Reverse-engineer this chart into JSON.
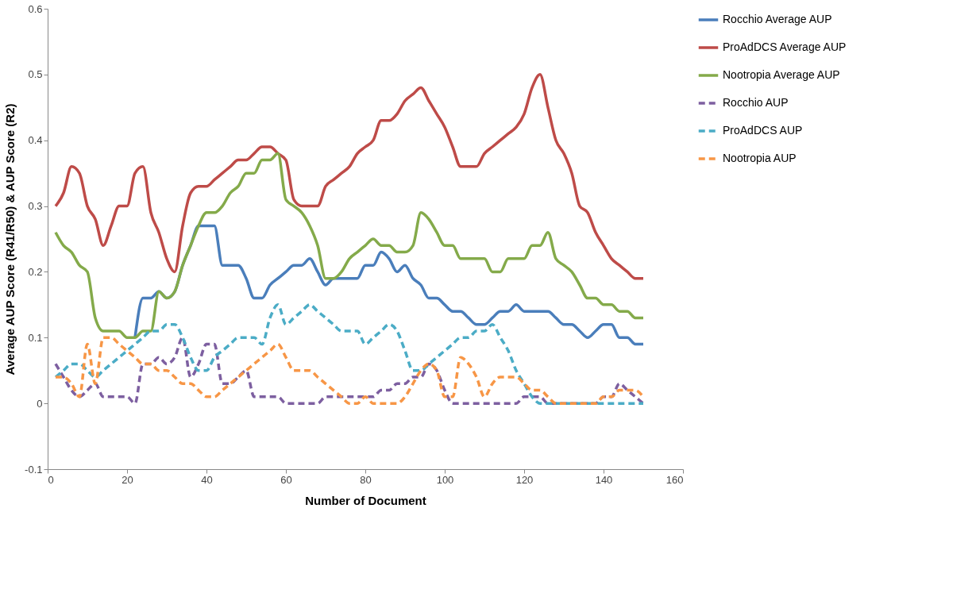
{
  "chart_data": {
    "type": "line",
    "xlabel": "Number of Document",
    "ylabel": "Average AUP Score  (R41/R50) & AUP Score (R2)",
    "x": [
      2,
      4,
      6,
      8,
      10,
      12,
      14,
      16,
      18,
      20,
      22,
      24,
      26,
      28,
      30,
      32,
      34,
      36,
      38,
      40,
      42,
      44,
      46,
      48,
      50,
      52,
      54,
      56,
      58,
      60,
      62,
      64,
      66,
      68,
      70,
      72,
      74,
      76,
      78,
      80,
      82,
      84,
      86,
      88,
      90,
      92,
      94,
      96,
      98,
      100,
      102,
      104,
      106,
      108,
      110,
      112,
      114,
      116,
      118,
      120,
      122,
      124,
      126,
      128,
      130,
      132,
      134,
      136,
      138,
      140,
      142,
      144,
      146,
      148,
      150
    ],
    "xlim": [
      0,
      160
    ],
    "xticks": [
      0,
      20,
      40,
      60,
      80,
      100,
      120,
      140,
      160
    ],
    "ylim": [
      -0.1,
      0.6
    ],
    "yticks": [
      -0.1,
      0,
      0.1,
      0.2,
      0.3,
      0.4,
      0.5,
      0.6
    ],
    "grid": false,
    "legend": "right",
    "marker": "none",
    "series": [
      {
        "name": "Rocchio Average AUP",
        "color": "#4a7ebb",
        "line_style": "solid",
        "values": [
          null,
          null,
          null,
          null,
          null,
          null,
          null,
          null,
          null,
          null,
          0.1,
          0.16,
          0.16,
          0.17,
          0.16,
          0.17,
          0.21,
          0.24,
          0.27,
          0.27,
          0.27,
          0.21,
          0.21,
          0.21,
          0.19,
          0.16,
          0.16,
          0.18,
          0.19,
          0.2,
          0.21,
          0.21,
          0.22,
          0.2,
          0.18,
          0.19,
          0.19,
          0.19,
          0.19,
          0.21,
          0.21,
          0.23,
          0.22,
          0.2,
          0.21,
          0.19,
          0.18,
          0.16,
          0.16,
          0.15,
          0.14,
          0.14,
          0.13,
          0.12,
          0.12,
          0.13,
          0.14,
          0.14,
          0.15,
          0.14,
          0.14,
          0.14,
          0.14,
          0.13,
          0.12,
          0.12,
          0.11,
          0.1,
          0.11,
          0.12,
          0.12,
          0.1,
          0.1,
          0.09,
          0.09
        ]
      },
      {
        "name": "ProAdDCS Average AUP",
        "color": "#be4b48",
        "line_style": "solid",
        "values": [
          0.3,
          0.32,
          0.36,
          0.35,
          0.3,
          0.28,
          0.24,
          0.27,
          0.3,
          0.3,
          0.35,
          0.36,
          0.29,
          0.26,
          0.22,
          0.2,
          0.27,
          0.32,
          0.33,
          0.33,
          0.34,
          0.35,
          0.36,
          0.37,
          0.37,
          0.38,
          0.39,
          0.39,
          0.38,
          0.37,
          0.31,
          0.3,
          0.3,
          0.3,
          0.33,
          0.34,
          0.35,
          0.36,
          0.38,
          0.39,
          0.4,
          0.43,
          0.43,
          0.44,
          0.46,
          0.47,
          0.48,
          0.46,
          0.44,
          0.42,
          0.39,
          0.36,
          0.36,
          0.36,
          0.38,
          0.39,
          0.4,
          0.41,
          0.42,
          0.44,
          0.48,
          0.5,
          0.45,
          0.4,
          0.38,
          0.35,
          0.3,
          0.29,
          0.26,
          0.24,
          0.22,
          0.21,
          0.2,
          0.19,
          0.19
        ]
      },
      {
        "name": "Nootropia Average AUP",
        "color": "#84aa4a",
        "line_style": "solid",
        "values": [
          0.26,
          0.24,
          0.23,
          0.21,
          0.2,
          0.13,
          0.11,
          0.11,
          0.11,
          0.1,
          0.1,
          0.11,
          0.11,
          0.17,
          0.16,
          0.17,
          0.21,
          0.24,
          0.27,
          0.29,
          0.29,
          0.3,
          0.32,
          0.33,
          0.35,
          0.35,
          0.37,
          0.37,
          0.38,
          0.31,
          0.3,
          0.29,
          0.27,
          0.24,
          0.19,
          0.19,
          0.2,
          0.22,
          0.23,
          0.24,
          0.25,
          0.24,
          0.24,
          0.23,
          0.23,
          0.24,
          0.29,
          0.28,
          0.26,
          0.24,
          0.24,
          0.22,
          0.22,
          0.22,
          0.22,
          0.2,
          0.2,
          0.22,
          0.22,
          0.22,
          0.24,
          0.24,
          0.26,
          0.22,
          0.21,
          0.2,
          0.18,
          0.16,
          0.16,
          0.15,
          0.15,
          0.14,
          0.14,
          0.13,
          0.13
        ]
      },
      {
        "name": "Rocchio AUP",
        "color": "#7d5fa0",
        "line_style": "dashed",
        "values": [
          0.06,
          0.04,
          0.02,
          0.01,
          0.02,
          0.03,
          0.01,
          0.01,
          0.01,
          0.01,
          0.0,
          0.06,
          0.06,
          0.07,
          0.06,
          0.07,
          0.1,
          0.04,
          0.06,
          0.09,
          0.09,
          0.03,
          0.03,
          0.04,
          0.05,
          0.01,
          0.01,
          0.01,
          0.01,
          0.0,
          0.0,
          0.0,
          0.0,
          0.0,
          0.01,
          0.01,
          0.01,
          0.01,
          0.01,
          0.01,
          0.01,
          0.02,
          0.02,
          0.03,
          0.03,
          0.04,
          0.04,
          0.06,
          0.05,
          0.02,
          0.0,
          0.0,
          0.0,
          0.0,
          0.0,
          0.0,
          0.0,
          0.0,
          0.0,
          0.01,
          0.01,
          0.01,
          0.0,
          0.0,
          0.0,
          0.0,
          0.0,
          0.0,
          0.0,
          0.01,
          0.01,
          0.03,
          0.02,
          0.01,
          0.0
        ]
      },
      {
        "name": "ProAdDCS AUP",
        "color": "#4bacc6",
        "line_style": "dashed",
        "values": [
          0.04,
          0.05,
          0.06,
          0.06,
          0.05,
          0.04,
          0.05,
          0.06,
          0.07,
          0.08,
          0.09,
          0.1,
          0.11,
          0.11,
          0.12,
          0.12,
          0.1,
          0.07,
          0.05,
          0.05,
          0.07,
          0.08,
          0.09,
          0.1,
          0.1,
          0.1,
          0.09,
          0.13,
          0.15,
          0.12,
          0.13,
          0.14,
          0.15,
          0.14,
          0.13,
          0.12,
          0.11,
          0.11,
          0.11,
          0.09,
          0.1,
          0.11,
          0.12,
          0.11,
          0.08,
          0.05,
          0.05,
          0.06,
          0.07,
          0.08,
          0.09,
          0.1,
          0.1,
          0.11,
          0.11,
          0.12,
          0.1,
          0.08,
          0.05,
          0.03,
          0.01,
          0.0,
          0.0,
          0.0,
          0.0,
          0.0,
          0.0,
          0.0,
          0.0,
          0.0,
          0.0,
          0.0,
          0.0,
          0.0,
          0.0
        ]
      },
      {
        "name": "Nootropia AUP",
        "color": "#f79646",
        "line_style": "dashed",
        "values": [
          0.04,
          0.04,
          0.03,
          0.01,
          0.09,
          0.03,
          0.1,
          0.1,
          0.09,
          0.08,
          0.07,
          0.06,
          0.06,
          0.05,
          0.05,
          0.04,
          0.03,
          0.03,
          0.02,
          0.01,
          0.01,
          0.02,
          0.03,
          0.04,
          0.05,
          0.06,
          0.07,
          0.08,
          0.09,
          0.07,
          0.05,
          0.05,
          0.05,
          0.04,
          0.03,
          0.02,
          0.01,
          0.0,
          0.0,
          0.01,
          0.0,
          0.0,
          0.0,
          0.0,
          0.01,
          0.03,
          0.05,
          0.06,
          0.05,
          0.01,
          0.01,
          0.07,
          0.06,
          0.04,
          0.01,
          0.03,
          0.04,
          0.04,
          0.04,
          0.03,
          0.02,
          0.02,
          0.01,
          0.0,
          0.0,
          0.0,
          0.0,
          0.0,
          0.0,
          0.01,
          0.01,
          0.02,
          0.02,
          0.02,
          0.01
        ]
      }
    ]
  }
}
